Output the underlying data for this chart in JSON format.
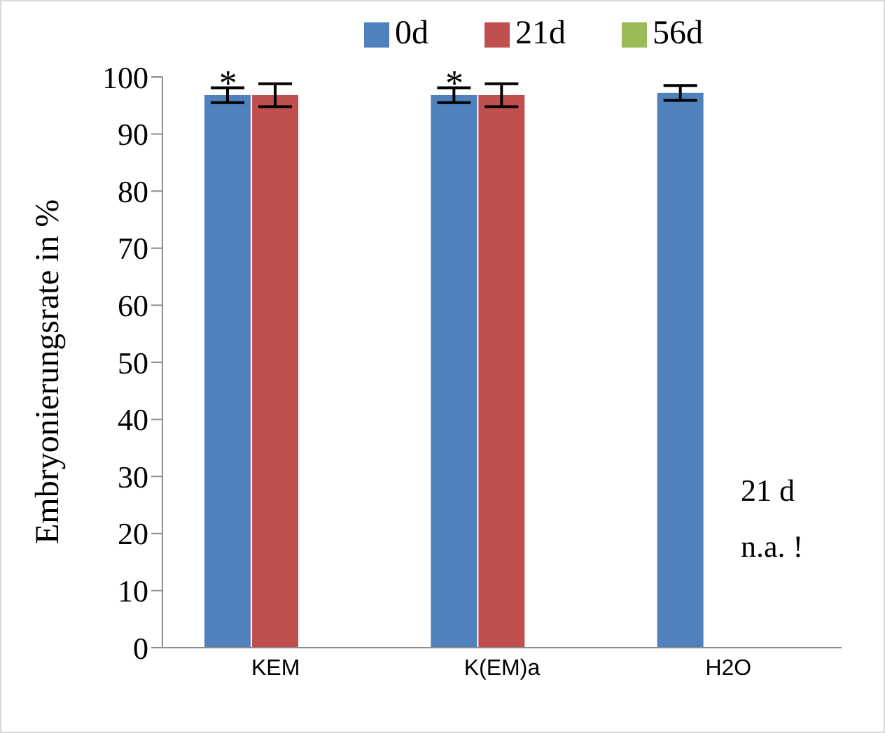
{
  "chart_data": {
    "type": "bar",
    "ylabel": "Embryonierungsrate in %",
    "categories": [
      "KEM",
      "K(EM)a",
      "H2O"
    ],
    "series": [
      {
        "name": "0d",
        "color": "#4f81bd",
        "values": [
          96.8,
          96.8,
          97.2
        ],
        "errors": [
          1.3,
          1.3,
          1.3
        ]
      },
      {
        "name": "21d",
        "color": "#c0504d",
        "values": [
          96.8,
          96.8,
          null
        ],
        "errors": [
          2.0,
          2.0,
          null
        ]
      },
      {
        "name": "56d",
        "color": "#9bbb59",
        "values": [
          null,
          null,
          null
        ]
      }
    ],
    "ylim": [
      0,
      100
    ],
    "yticks": [
      0,
      10,
      20,
      30,
      40,
      50,
      60,
      70,
      80,
      90,
      100
    ],
    "grid": false,
    "legend": "top",
    "annotations": [
      {
        "text": "*",
        "x": "KEM",
        "y": 99
      },
      {
        "text": "*",
        "x": "K(EM)a",
        "y": 99
      },
      "21 d\nn.a. !"
    ]
  }
}
